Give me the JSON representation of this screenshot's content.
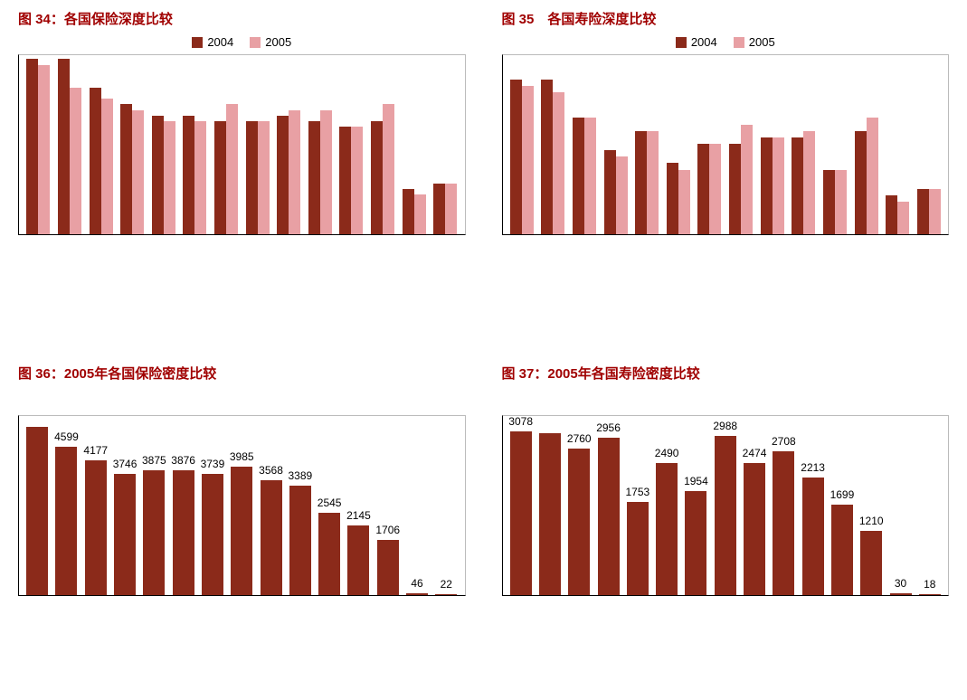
{
  "colors": {
    "title": "#a00000",
    "series2004": "#8b2a1a",
    "series2005": "#e8a0a4",
    "single_bar": "#8b2a1a",
    "axis": "#000000"
  },
  "legend_labels": {
    "y2004": "2004",
    "y2005": "2005"
  },
  "chart34": {
    "title": "图 34：各国保险深度比较",
    "type": "grouped-bar",
    "ylim": 16,
    "series": [
      {
        "v04": 15.5,
        "v05": 15.0
      },
      {
        "v04": 15.5,
        "v05": 13.0
      },
      {
        "v04": 13.0,
        "v05": 12.0
      },
      {
        "v04": 11.5,
        "v05": 11.0
      },
      {
        "v04": 10.5,
        "v05": 10.0
      },
      {
        "v04": 10.5,
        "v05": 10.0
      },
      {
        "v04": 10.0,
        "v05": 11.5
      },
      {
        "v04": 10.0,
        "v05": 10.0
      },
      {
        "v04": 10.5,
        "v05": 11.0
      },
      {
        "v04": 10.0,
        "v05": 11.0
      },
      {
        "v04": 9.5,
        "v05": 9.5
      },
      {
        "v04": 10.0,
        "v05": 11.5
      },
      {
        "v04": 4.0,
        "v05": 3.5
      },
      {
        "v04": 4.5,
        "v05": 4.5
      }
    ]
  },
  "chart35": {
    "title": "图 35　各国寿险深度比较",
    "type": "grouped-bar",
    "ylim": 14,
    "series": [
      {
        "v04": 12.0,
        "v05": 11.5
      },
      {
        "v04": 12.0,
        "v05": 11.0
      },
      {
        "v04": 9.0,
        "v05": 9.0
      },
      {
        "v04": 6.5,
        "v05": 6.0
      },
      {
        "v04": 8.0,
        "v05": 8.0
      },
      {
        "v04": 5.5,
        "v05": 5.0
      },
      {
        "v04": 7.0,
        "v05": 7.0
      },
      {
        "v04": 7.0,
        "v05": 8.5
      },
      {
        "v04": 7.5,
        "v05": 7.5
      },
      {
        "v04": 7.5,
        "v05": 8.0
      },
      {
        "v04": 5.0,
        "v05": 5.0
      },
      {
        "v04": 8.0,
        "v05": 9.0
      },
      {
        "v04": 3.0,
        "v05": 2.5
      },
      {
        "v04": 3.5,
        "v05": 3.5
      }
    ]
  },
  "chart36": {
    "title": "图 36：2005年各国保险密度比较",
    "type": "bar",
    "ylim": 5600,
    "values": [
      5200,
      4599,
      4177,
      3746,
      3875,
      3876,
      3739,
      3985,
      3568,
      3389,
      2545,
      2145,
      1706,
      46,
      22
    ],
    "labels": [
      "",
      "4599",
      "4177",
      "3746",
      "3875",
      "3876",
      "3739",
      "3985",
      "3568",
      "3389",
      "2545",
      "2145",
      "1706",
      "46",
      "22"
    ]
  },
  "chart37": {
    "title": "图 37：2005年各国寿险密度比较",
    "type": "bar",
    "ylim": 3400,
    "values": [
      3078,
      3050,
      2760,
      2956,
      1753,
      2490,
      1954,
      2988,
      2474,
      2708,
      2213,
      1699,
      1210,
      30,
      18
    ],
    "labels": [
      "3078",
      "",
      "2760",
      "2956",
      "1753",
      "2490",
      "1954",
      "2988",
      "2474",
      "2708",
      "2213",
      "1699",
      "1210",
      "30",
      "18"
    ]
  }
}
